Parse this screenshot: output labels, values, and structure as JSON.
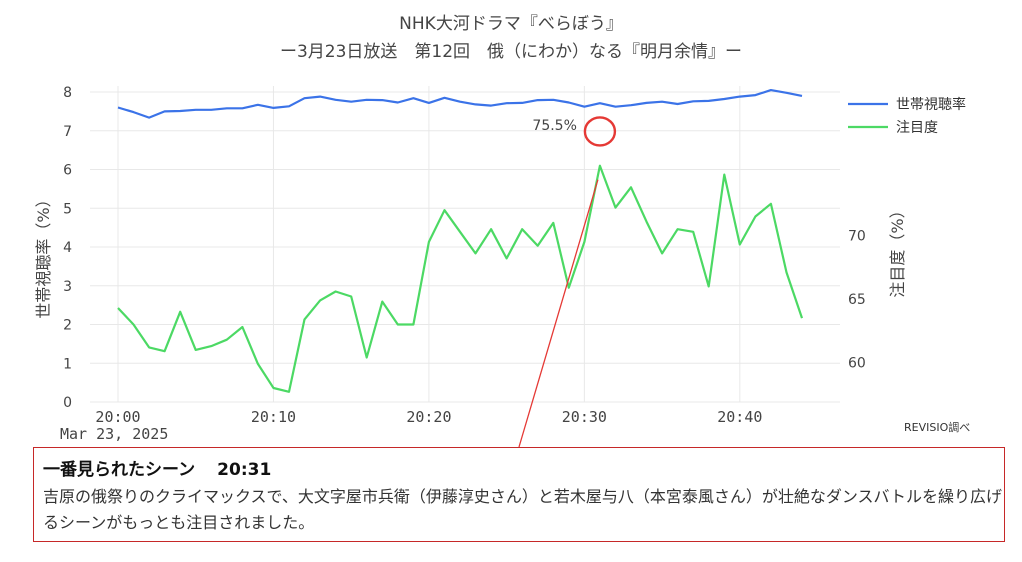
{
  "header": {
    "title_line1": "NHK大河ドラマ『べらぼう』",
    "title_line2": "ー3月23日放送　第12回　俄（にわか）なる『明月余情』ー"
  },
  "chart_data": {
    "type": "line",
    "x_start_label": "Mar 23, 2025",
    "x_ticks": [
      "20:00",
      "20:10",
      "20:20",
      "20:30",
      "20:40"
    ],
    "x": [
      "20:00",
      "20:01",
      "20:02",
      "20:03",
      "20:04",
      "20:05",
      "20:06",
      "20:07",
      "20:08",
      "20:09",
      "20:10",
      "20:11",
      "20:12",
      "20:13",
      "20:14",
      "20:15",
      "20:16",
      "20:17",
      "20:18",
      "20:19",
      "20:20",
      "20:21",
      "20:22",
      "20:23",
      "20:24",
      "20:25",
      "20:26",
      "20:27",
      "20:28",
      "20:29",
      "20:30",
      "20:31",
      "20:32",
      "20:33",
      "20:34",
      "20:35",
      "20:36",
      "20:37",
      "20:38",
      "20:39",
      "20:40",
      "20:41",
      "20:42",
      "20:43",
      "20:44"
    ],
    "y_left": {
      "label": "世帯視聴率（%）",
      "range": [
        0,
        8
      ],
      "ticks": [
        "0",
        "1",
        "2",
        "3",
        "4",
        "5",
        "6",
        "7",
        "8"
      ]
    },
    "y_right": {
      "label": "注目度（%）",
      "range": [
        56.9,
        81.3
      ],
      "ticks": [
        "60",
        "65",
        "70"
      ]
    },
    "series": [
      {
        "name": "世帯視聴率",
        "axis": "left",
        "color": "#3b73e8",
        "values": [
          7.6,
          7.48,
          7.34,
          7.5,
          7.51,
          7.54,
          7.54,
          7.58,
          7.58,
          7.67,
          7.59,
          7.63,
          7.84,
          7.88,
          7.8,
          7.75,
          7.8,
          7.79,
          7.73,
          7.84,
          7.72,
          7.85,
          7.75,
          7.68,
          7.65,
          7.71,
          7.72,
          7.79,
          7.8,
          7.73,
          7.62,
          7.71,
          7.62,
          7.66,
          7.72,
          7.75,
          7.69,
          7.76,
          7.77,
          7.82,
          7.88,
          7.92,
          8.05,
          7.98,
          7.9
        ]
      },
      {
        "name": "注目度",
        "axis": "right",
        "color": "#4cd964",
        "values": [
          64.3,
          63.0,
          61.2,
          60.9,
          64.0,
          61.0,
          61.3,
          61.8,
          62.8,
          59.9,
          58.0,
          57.7,
          63.4,
          64.9,
          65.6,
          65.2,
          60.4,
          64.8,
          63.0,
          63.0,
          69.5,
          72.0,
          70.3,
          68.6,
          70.5,
          68.2,
          70.5,
          69.2,
          71.0,
          65.9,
          69.5,
          75.5,
          72.2,
          73.8,
          71.1,
          68.6,
          70.5,
          70.3,
          66.0,
          74.8,
          69.3,
          71.5,
          72.5,
          67.1,
          63.5
        ]
      }
    ],
    "annotation": {
      "x": "20:31",
      "series": "注目度",
      "text": "75.5%"
    },
    "legend_position": "top-right",
    "grid": true
  },
  "source_label": "REVISIO調べ",
  "scene": {
    "heading": "一番見られたシーン",
    "time": "20:31",
    "description": "吉原の俄祭りのクライマックスで、大文字屋市兵衛（伊藤淳史さん）と若木屋与八（本宮泰風さん）が壮絶なダンスバトルを繰り広げるシーンがもっとも注目されました。"
  }
}
